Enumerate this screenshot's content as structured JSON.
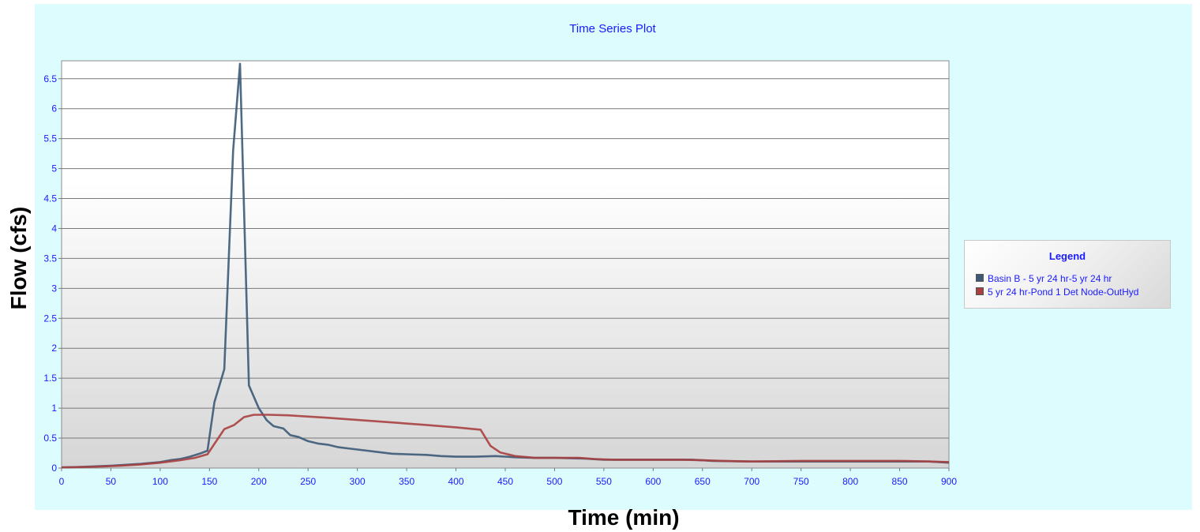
{
  "chart_data": {
    "type": "line",
    "title": "Time Series Plot",
    "xlabel": "Time (min)",
    "ylabel": "Flow (cfs)",
    "xlim": [
      0,
      900
    ],
    "ylim": [
      0,
      6.8
    ],
    "xticks": [
      0,
      50,
      100,
      150,
      200,
      250,
      300,
      350,
      400,
      450,
      500,
      550,
      600,
      650,
      700,
      750,
      800,
      850,
      900
    ],
    "yticks": [
      0,
      0.5,
      1,
      1.5,
      2,
      2.5,
      3,
      3.5,
      4,
      4.5,
      5,
      5.5,
      6,
      6.5
    ],
    "ytick_labels": [
      "0",
      "0.5",
      "1",
      "1.5",
      "2",
      "2.5",
      "3",
      "3.5",
      "4",
      "4.5",
      "5",
      "5.5",
      "6",
      "6.5"
    ],
    "grid": true,
    "legend_title": "Legend",
    "legend_position": "right",
    "series": [
      {
        "name": "Basin B - 5 yr 24 hr-5 yr 24 hr",
        "color": "#3c5a78",
        "points": [
          [
            0,
            0.01
          ],
          [
            20,
            0.02
          ],
          [
            50,
            0.04
          ],
          [
            80,
            0.07
          ],
          [
            100,
            0.1
          ],
          [
            110,
            0.13
          ],
          [
            120,
            0.15
          ],
          [
            130,
            0.19
          ],
          [
            140,
            0.24
          ],
          [
            148,
            0.29
          ],
          [
            155,
            1.1
          ],
          [
            165,
            1.65
          ],
          [
            174,
            5.3
          ],
          [
            181,
            6.75
          ],
          [
            190,
            1.38
          ],
          [
            200,
            1.0
          ],
          [
            208,
            0.8
          ],
          [
            215,
            0.7
          ],
          [
            225,
            0.66
          ],
          [
            232,
            0.55
          ],
          [
            240,
            0.52
          ],
          [
            250,
            0.45
          ],
          [
            260,
            0.41
          ],
          [
            270,
            0.39
          ],
          [
            280,
            0.35
          ],
          [
            290,
            0.33
          ],
          [
            300,
            0.31
          ],
          [
            310,
            0.29
          ],
          [
            325,
            0.26
          ],
          [
            335,
            0.24
          ],
          [
            350,
            0.23
          ],
          [
            370,
            0.22
          ],
          [
            385,
            0.2
          ],
          [
            400,
            0.19
          ],
          [
            420,
            0.19
          ],
          [
            440,
            0.2
          ],
          [
            460,
            0.18
          ],
          [
            480,
            0.17
          ],
          [
            500,
            0.17
          ],
          [
            530,
            0.16
          ],
          [
            550,
            0.14
          ],
          [
            600,
            0.14
          ],
          [
            640,
            0.14
          ],
          [
            660,
            0.12
          ],
          [
            700,
            0.11
          ],
          [
            750,
            0.11
          ],
          [
            800,
            0.11
          ],
          [
            850,
            0.11
          ],
          [
            880,
            0.11
          ],
          [
            900,
            0.09
          ]
        ]
      },
      {
        "name": "5 yr 24 hr-Pond 1 Det Node-OutHyd",
        "color": "#a84040",
        "points": [
          [
            0,
            0.01
          ],
          [
            30,
            0.02
          ],
          [
            60,
            0.04
          ],
          [
            80,
            0.06
          ],
          [
            100,
            0.09
          ],
          [
            120,
            0.13
          ],
          [
            135,
            0.17
          ],
          [
            148,
            0.23
          ],
          [
            165,
            0.65
          ],
          [
            175,
            0.72
          ],
          [
            185,
            0.85
          ],
          [
            195,
            0.89
          ],
          [
            210,
            0.89
          ],
          [
            230,
            0.88
          ],
          [
            270,
            0.84
          ],
          [
            320,
            0.78
          ],
          [
            370,
            0.72
          ],
          [
            400,
            0.68
          ],
          [
            425,
            0.64
          ],
          [
            435,
            0.37
          ],
          [
            445,
            0.26
          ],
          [
            460,
            0.2
          ],
          [
            480,
            0.17
          ],
          [
            500,
            0.17
          ],
          [
            525,
            0.17
          ],
          [
            540,
            0.15
          ],
          [
            560,
            0.14
          ],
          [
            600,
            0.14
          ],
          [
            630,
            0.14
          ],
          [
            650,
            0.13
          ],
          [
            670,
            0.12
          ],
          [
            700,
            0.11
          ],
          [
            750,
            0.12
          ],
          [
            800,
            0.12
          ],
          [
            850,
            0.12
          ],
          [
            880,
            0.11
          ],
          [
            900,
            0.1
          ]
        ]
      }
    ]
  }
}
